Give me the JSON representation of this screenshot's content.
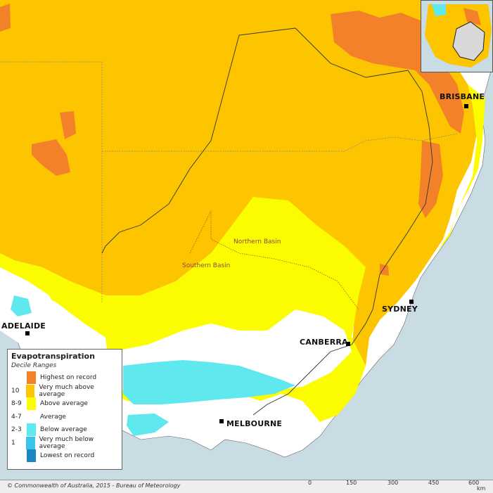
{
  "map": {
    "colors": {
      "highest": "#f2812a",
      "very_much_above": "#fdc400",
      "above": "#fcfc00",
      "average": "#ffffff",
      "below": "#5fe8ee",
      "very_much_below": "#3ac3ec",
      "lowest": "#1f87bf",
      "ocean": "#c9dbe3"
    },
    "cities": [
      {
        "name": "BRISBANE"
      },
      {
        "name": "SYDNEY"
      },
      {
        "name": "CANBERRA"
      },
      {
        "name": "MELBOURNE"
      },
      {
        "name": "ADELAIDE"
      }
    ],
    "basins": [
      "Northern Basin",
      "Southern Basin"
    ]
  },
  "legend": {
    "title": "Evapotranspiration",
    "subtitle": "Decile Ranges",
    "rows": [
      {
        "code": "",
        "label": "Highest on record",
        "color": "#f2812a"
      },
      {
        "code": "10",
        "label": "Very much above average",
        "color": "#fdc400"
      },
      {
        "code": "8-9",
        "label": "Above average",
        "color": "#fcfc00"
      },
      {
        "code": "4-7",
        "label": "Average",
        "color": "#ffffff"
      },
      {
        "code": "2-3",
        "label": "Below average",
        "color": "#5fe8ee"
      },
      {
        "code": "1",
        "label": "Very much below average",
        "color": "#3ac3ec"
      },
      {
        "code": "",
        "label": "Lowest on record",
        "color": "#1f87bf"
      }
    ]
  },
  "footer": {
    "copyright": "© Commonwealth of Australia, 2015 - Bureau of Meteorology",
    "scale": {
      "ticks": [
        "0",
        "150",
        "300",
        "450",
        "600"
      ],
      "unit": "km"
    }
  }
}
